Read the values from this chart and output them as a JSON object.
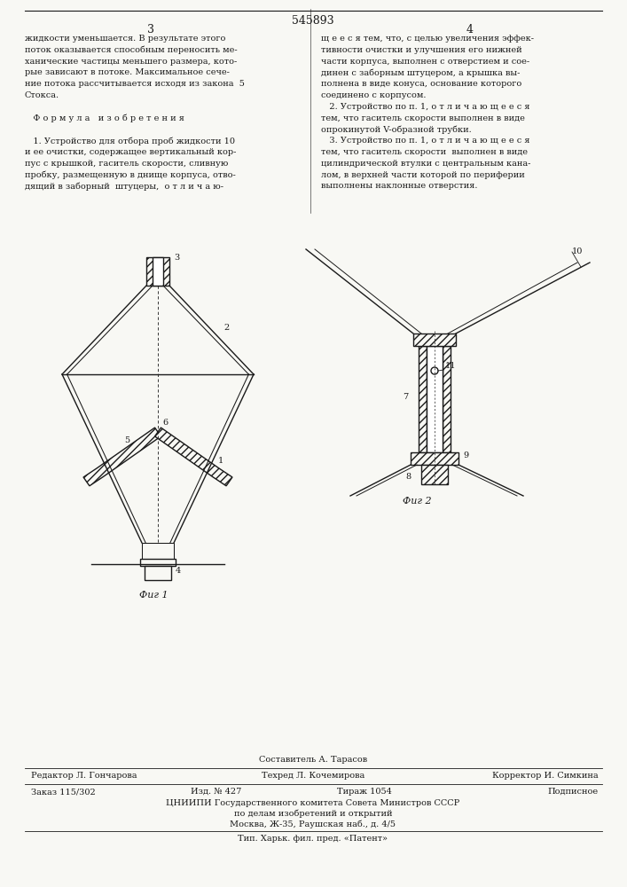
{
  "patent_number": "545893",
  "page_left": "3",
  "page_right": "4",
  "bg_color": "#f8f8f4",
  "text_color": "#1a1a1a",
  "col1_text": [
    "жидкости уменьшается. В результате этого",
    "поток оказывается способным переносить ме-",
    "ханические частицы меньшего размера, кото-",
    "рые зависают в потоке. Максимальное сече-",
    "ние потока рассчитывается исходя из закона  5",
    "Стокса.",
    "",
    "   Ф о р м у л а   и з о б р е т е н и я",
    "",
    "   1. Устройство для отбора проб жидкости 10",
    "и ее очистки, содержащее вертикальный кор-",
    "пус с крышкой, гаситель скорости, сливную",
    "пробку, размещенную в днище корпуса, отво-",
    "дящий в заборный  штуцеры,  о т л и ч а ю-"
  ],
  "col2_text": [
    "щ е е с я тем, что, с целью увеличения эффек-",
    "тивности очистки и улучшения его нижней",
    "части корпуса, выполнен с отверстием и сое-",
    "динен с заборным штуцером, а крышка вы-",
    "полнена в виде конуса, основание которого",
    "соединено с корпусом.",
    "   2. Устройство по п. 1, о т л и ч а ю щ е е с я",
    "тем, что гаситель скорости выполнен в виде",
    "опрокинутой V-образной трубки.",
    "   3. Устройство по п. 1, о т л и ч а ю щ е е с я",
    "тем, что гаситель скорости  выполнен в виде",
    "цилиндрической втулки с центральным кана-",
    "лом, в верхней части которой по периферии",
    "выполнены наклонные отверстия."
  ],
  "fig1_caption": "Фиг 1",
  "fig2_caption": "Фиг 2",
  "footer_line1": "Составитель А. Тарасов",
  "footer_line2_left": "Редактор Л. Гончарова",
  "footer_line2_mid": "Техред Л. Кочемирова",
  "footer_line2_right": "Корректор И. Симкина",
  "footer_line3_left": "Заказ 115/302",
  "footer_line3_mid1": "Изд. № 427",
  "footer_line3_mid2": "Тираж 1054",
  "footer_line3_right": "Подписное",
  "footer_org": "ЦНИИПИ Государственного комитета Совета Министров СССР",
  "footer_org2": "по делам изобретений и открытий",
  "footer_addr": "Москва, Ж-35, Раушская наб., д. 4/5",
  "footer_print": "Тип. Харьк. фил. пред. «Патент»"
}
